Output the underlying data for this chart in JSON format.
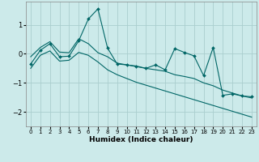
{
  "title": "",
  "xlabel": "Humidex (Indice chaleur)",
  "bg_color": "#cceaea",
  "grid_color": "#aacece",
  "line_color": "#006666",
  "x_data": [
    0,
    1,
    2,
    3,
    4,
    5,
    6,
    7,
    8,
    9,
    10,
    11,
    12,
    13,
    14,
    15,
    16,
    17,
    18,
    19,
    20,
    21,
    22,
    23
  ],
  "y_main": [
    -0.35,
    0.12,
    0.35,
    -0.1,
    -0.08,
    0.45,
    1.2,
    1.55,
    0.2,
    -0.35,
    -0.38,
    -0.42,
    -0.5,
    -0.38,
    -0.55,
    0.18,
    0.05,
    -0.07,
    -0.75,
    0.22,
    -1.43,
    -1.38,
    -1.45,
    -1.48
  ],
  "y_upper": [
    -0.1,
    0.22,
    0.42,
    0.06,
    0.04,
    0.52,
    0.35,
    0.04,
    -0.1,
    -0.32,
    -0.38,
    -0.44,
    -0.5,
    -0.55,
    -0.6,
    -0.72,
    -0.78,
    -0.85,
    -1.0,
    -1.1,
    -1.25,
    -1.35,
    -1.45,
    -1.52
  ],
  "y_lower": [
    -0.5,
    -0.05,
    0.1,
    -0.25,
    -0.22,
    0.05,
    -0.05,
    -0.28,
    -0.55,
    -0.72,
    -0.85,
    -0.98,
    -1.08,
    -1.18,
    -1.28,
    -1.38,
    -1.48,
    -1.58,
    -1.68,
    -1.78,
    -1.88,
    -1.98,
    -2.08,
    -2.18
  ],
  "ylim": [
    -2.5,
    1.8
  ],
  "xlim": [
    -0.5,
    23.5
  ],
  "yticks": [
    -2,
    -1,
    0,
    1
  ],
  "xticks": [
    0,
    1,
    2,
    3,
    4,
    5,
    6,
    7,
    8,
    9,
    10,
    11,
    12,
    13,
    14,
    15,
    16,
    17,
    18,
    19,
    20,
    21,
    22,
    23
  ]
}
